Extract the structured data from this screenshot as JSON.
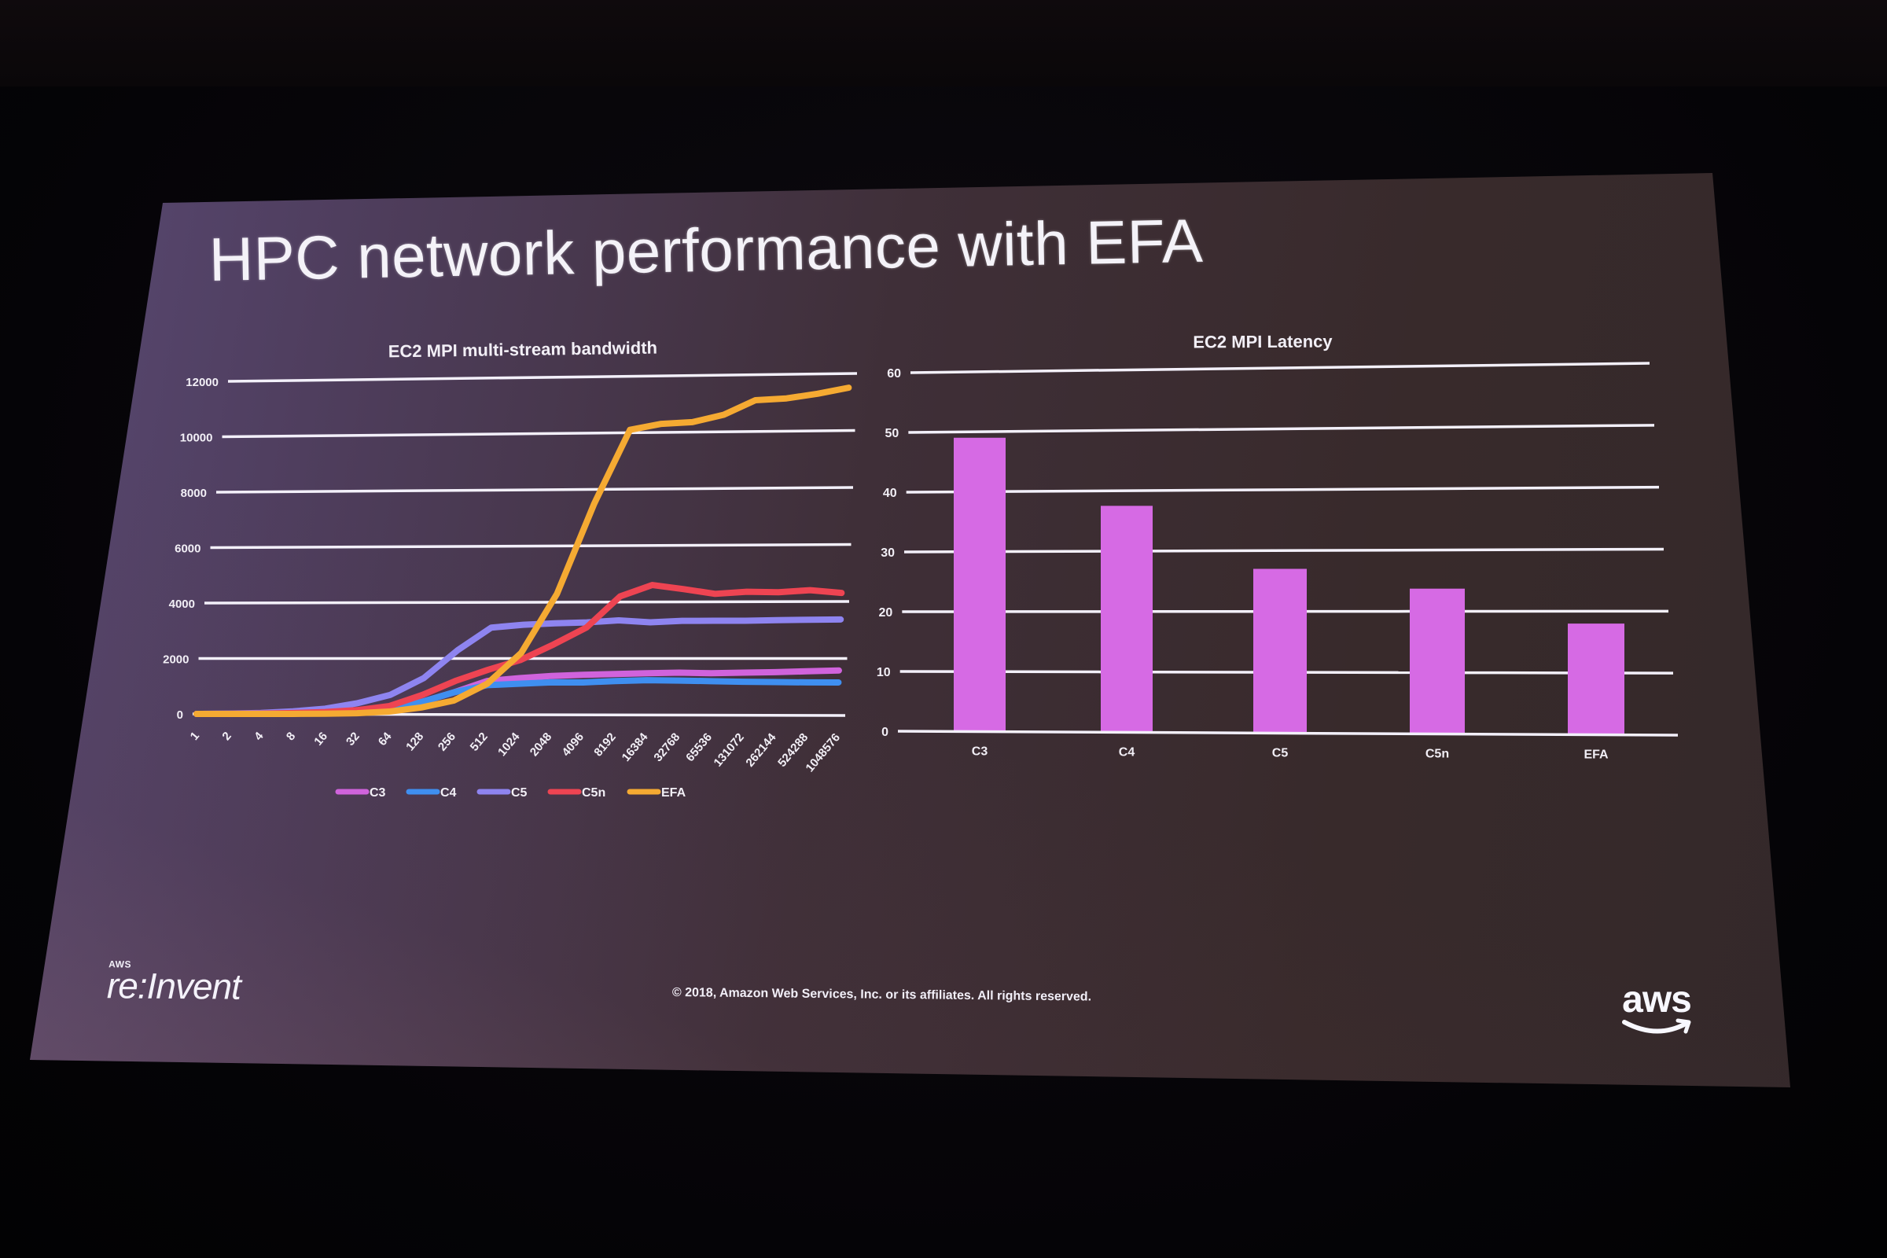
{
  "slide": {
    "title": "HPC network performance with EFA",
    "footer_copyright": "© 2018, Amazon Web Services, Inc. or its affiliates. All rights reserved.",
    "brand_left_small": "AWS",
    "brand_left": "re:Invent",
    "brand_right": "aws",
    "background_colors": {
      "screen_left": "#5a4a76",
      "screen_right": "#33282a",
      "room": "#050407"
    }
  },
  "chart_data": [
    {
      "type": "line",
      "title": "EC2 MPI multi-stream bandwidth",
      "xlabel": "",
      "ylabel": "",
      "x": [
        "1",
        "2",
        "4",
        "8",
        "16",
        "32",
        "64",
        "128",
        "256",
        "512",
        "1024",
        "2048",
        "4096",
        "8192",
        "16384",
        "32768",
        "65536",
        "131072",
        "262144",
        "524288",
        "1048576"
      ],
      "yticks": [
        "0",
        "2000",
        "4000",
        "6000",
        "8000",
        "10000",
        "12000"
      ],
      "ylim": [
        0,
        12000
      ],
      "grid": true,
      "legend_position": "bottom",
      "series": [
        {
          "name": "C3",
          "color": "#d063dc",
          "values": [
            0,
            5,
            10,
            20,
            40,
            80,
            200,
            450,
            800,
            1200,
            1300,
            1380,
            1420,
            1450,
            1480,
            1500,
            1480,
            1500,
            1520,
            1550,
            1580
          ]
        },
        {
          "name": "C4",
          "color": "#3f8ff0",
          "values": [
            0,
            5,
            10,
            20,
            40,
            80,
            200,
            450,
            800,
            1050,
            1100,
            1150,
            1150,
            1200,
            1230,
            1220,
            1200,
            1180,
            1170,
            1160,
            1160
          ]
        },
        {
          "name": "C5",
          "color": "#8e84f0",
          "values": [
            0,
            15,
            40,
            100,
            200,
            400,
            700,
            1300,
            2300,
            3100,
            3200,
            3250,
            3280,
            3350,
            3280,
            3330,
            3330,
            3330,
            3350,
            3360,
            3370
          ]
        },
        {
          "name": "C5n",
          "color": "#ee4452",
          "values": [
            0,
            5,
            15,
            40,
            80,
            150,
            300,
            700,
            1200,
            1600,
            1950,
            2500,
            3100,
            4200,
            4600,
            4450,
            4280,
            4350,
            4330,
            4400,
            4300
          ]
        },
        {
          "name": "EFA",
          "color": "#f5aa32",
          "values": [
            0,
            2,
            5,
            10,
            20,
            40,
            100,
            250,
            500,
            1100,
            2200,
            4300,
            7500,
            10100,
            10300,
            10350,
            10600,
            11100,
            11150,
            11300,
            11500
          ]
        }
      ]
    },
    {
      "type": "bar",
      "title": "EC2 MPI Latency",
      "xlabel": "",
      "ylabel": "",
      "categories": [
        "C3",
        "C4",
        "C5",
        "C5n",
        "EFA"
      ],
      "values": [
        49,
        37.5,
        27,
        23.7,
        18
      ],
      "yticks": [
        "0",
        "10",
        "20",
        "30",
        "40",
        "50",
        "60"
      ],
      "ylim": [
        0,
        60
      ],
      "grid": true,
      "color": "#d66ae4"
    }
  ]
}
